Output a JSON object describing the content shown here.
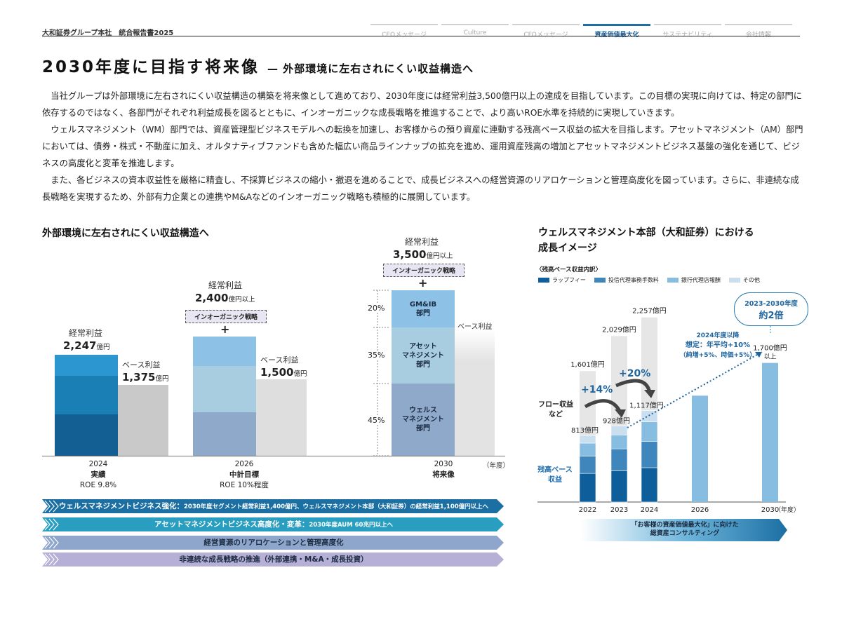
{
  "header": {
    "left": "大和証券グループ本社　統合報告書2025",
    "tabs": [
      {
        "label": "CEOメッセージ",
        "active": false
      },
      {
        "label": "Culture",
        "active": false
      },
      {
        "label": "CFOメッセージ",
        "active": false
      },
      {
        "label": "資産価値最大化",
        "active": true
      },
      {
        "label": "サステナビリティ",
        "active": false
      },
      {
        "label": "会社情報",
        "active": false
      }
    ]
  },
  "title": "2030年度に目指す将来像",
  "subtitle": "— 外部環境に左右されにくい収益構造へ",
  "paragraphs": [
    "当社グループは外部環境に左右されにくい収益構造の構築を将来像として進めており、2030年度には経常利益3,500億円以上の達成を目指しています。この目標の実現に向けては、特定の部門に依存するのではなく、各部門がそれぞれ利益成長を図るとともに、インオーガニックな成長戦略を推進することで、より高いROE水準を持続的に実現していきます。",
    "ウェルスマネジメント（WM）部門では、資産管理型ビジネスモデルへの転換を加速し、お客様からの預り資産に連動する残高ベース収益の拡大を目指します。アセットマネジメント（AM）部門においては、債券・株式・不動産に加え、オルタナティブファンドも含めた幅広い商品ラインナップの拡充を進め、運用資産残高の増加とアセットマネジメントビジネス基盤の強化を通じて、ビジネスの高度化と変革を推進します。",
    "また、各ビジネスの資本収益性を厳格に精査し、不採算ビジネスの縮小・撤退を進めることで、成長ビジネスへの経営資源のリアロケーションと管理高度化を図っています。さらに、非連続な成長戦略を実現するため、外部有力企業との連携やM&Aなどのインオーガニック戦略も積極的に展開しています。"
  ],
  "left_chart": {
    "title": "外部環境に左右されにくい収益構造へ",
    "col2024": {
      "label": "経常利益",
      "value": "2,247",
      "unit": "億円",
      "base_label": "ベース利益",
      "base_value": "1,375",
      "base_unit": "億円",
      "year": "2024",
      "sub": "実績",
      "roe": "ROE 9.8%"
    },
    "col2026": {
      "label": "経常利益",
      "value": "2,400",
      "unit": "億円以上",
      "tag": "インオーガニック戦略",
      "plus": "+",
      "base_label": "ベース利益",
      "base_value": "1,500",
      "base_unit": "億円",
      "year": "2026",
      "sub": "中計目標",
      "roe": "ROE 10%程度"
    },
    "col2030": {
      "label": "経常利益",
      "value": "3,500",
      "unit": "億円以上",
      "tag": "インオーガニック戦略",
      "plus": "+",
      "base_label": "ベース利益",
      "year": "2030",
      "sub": "将来像",
      "segments": [
        {
          "name": "GM&IB\n部門",
          "pct": "20%"
        },
        {
          "name": "アセット\nマネジメント\n部門",
          "pct": "35%"
        },
        {
          "name": "ウェルス\nマネジメント\n部門",
          "pct": "45%"
        }
      ]
    },
    "fy": "（年度）"
  },
  "bands": [
    {
      "main": "ウェルスマネジメントビジネス強化：",
      "sub": "2030年度セグメント経常利益1,400億円、ウェルスマネジメント本部（大和証券）の経常利益1,100億円以上へ",
      "color": "#1b6fa3"
    },
    {
      "main": "アセットマネジメントビジネス高度化・変革：",
      "sub": "2030年度AUM 60兆円以上へ",
      "color": "#2a9ec0"
    },
    {
      "main": "経営資源のリアロケーションと管理高度化",
      "sub": "",
      "color": "#8fa6cc"
    },
    {
      "main": "非連続な成長戦略の推進（外部連携・M&A・成長投資）",
      "sub": "",
      "color": "#b7b0d6"
    }
  ],
  "right_chart": {
    "title_l1": "ウェルスマネジメント本部（大和証券）における",
    "title_l2": "成長イメージ",
    "legend_title": "〈残高ベース収益内訳〉",
    "legend": [
      {
        "name": "ラップフィー",
        "color": "#0e5e9c"
      },
      {
        "name": "投信代理事務手数料",
        "color": "#3f86bd"
      },
      {
        "name": "銀行代理店報酬",
        "color": "#86bde0"
      },
      {
        "name": "その他",
        "color": "#c9dfef"
      }
    ],
    "flow_label": "フロー収益\nなど",
    "base_label": "残高ベース\n収益",
    "bubble_l1": "2023-2030年度",
    "bubble_l2": "約2倍",
    "assume_l1": "2024年度以降",
    "assume_l2": "想定：年平均+10%",
    "assume_l3": "（純増+5%、時価+5%）",
    "growth1": "+14%",
    "growth2": "+20%",
    "fy": "（年度）",
    "bottom_band_l1": "「お客様の資産価値最大化」に向けた",
    "bottom_band_l2": "総資産コンサルティング"
  },
  "chart_data": {
    "type": "bar",
    "categories": [
      "2022",
      "2023",
      "2024",
      "2026",
      "2030"
    ],
    "series": [
      {
        "name": "ラップフィー",
        "values": [
          350,
          380,
          420,
          null,
          null
        ]
      },
      {
        "name": "投信代理事務手数料",
        "values": [
          210,
          270,
          320,
          null,
          null
        ]
      },
      {
        "name": "銀行代理店報酬",
        "values": [
          160,
          170,
          240,
          null,
          null
        ]
      },
      {
        "name": "その他",
        "values": [
          93,
          108,
          137,
          null,
          null
        ]
      }
    ],
    "total_labels": [
      "1,601億円",
      "2,029億円",
      "2,257億円",
      "",
      ""
    ],
    "base_labels": [
      "813億円",
      "928億円",
      "1,117億円",
      "",
      "1,700億円以上"
    ],
    "base_totals": [
      813,
      928,
      1117,
      1300,
      1700
    ],
    "totals": [
      1601,
      2029,
      2257,
      null,
      null
    ],
    "ylim": [
      0,
      2400
    ]
  }
}
